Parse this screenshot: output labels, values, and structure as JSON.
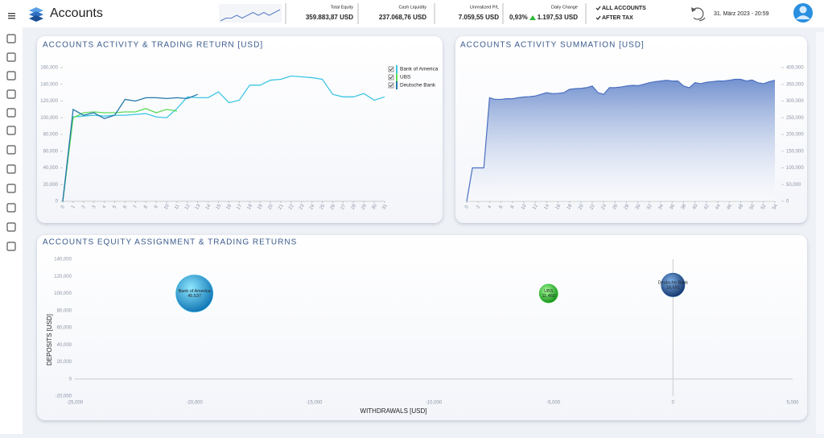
{
  "header": {
    "title": "Accounts",
    "sparkline": [
      3,
      4,
      4,
      5,
      4,
      5,
      6,
      5,
      6,
      5,
      6,
      7
    ],
    "kpis": [
      {
        "label": "Total Equity",
        "value": "359.883,87 USD"
      },
      {
        "label": "Cash Liquidity",
        "value": "237.068,76 USD"
      },
      {
        "label": "Unrealized P/L",
        "value": "7.059,55 USD"
      }
    ],
    "daily_change": {
      "label": "Daily Change",
      "percent": "0,93%",
      "value": "1.197,53 USD"
    },
    "options": [
      "ALL ACCOUNTS",
      "AFTER TAX"
    ],
    "datetime": "31. März 2023  -  20:59"
  },
  "chart_data": [
    {
      "type": "line",
      "title": "ACCOUNTS ACTIVITY & TRADING RETURN [USD]",
      "legend": "top-right",
      "x": [
        0,
        1,
        2,
        3,
        4,
        5,
        6,
        7,
        8,
        9,
        10,
        11,
        12,
        13,
        14,
        15,
        16,
        17,
        18,
        19,
        20,
        21,
        22,
        23,
        24,
        25,
        26,
        27,
        28,
        29,
        30,
        31
      ],
      "xlim": [
        0,
        31
      ],
      "ylim": [
        0,
        160000
      ],
      "yticks": [
        0,
        {
          "value": 20000,
          "label": "20,000"
        },
        {
          "value": 40000,
          "label": "40,000"
        },
        {
          "value": 60000,
          "label": "60,000"
        },
        {
          "value": 80000,
          "label": "80,000"
        },
        {
          "value": 100000,
          "label": "100,000"
        },
        {
          "value": 120000,
          "label": "120,000"
        },
        {
          "value": 140000,
          "label": "140,000"
        },
        {
          "value": 160000,
          "label": "160,000"
        }
      ],
      "series": [
        {
          "name": "Bank of America",
          "color": "#3cc6e4",
          "values": [
            0,
            101000,
            102000,
            103000,
            102000,
            103000,
            103000,
            104000,
            105000,
            101000,
            100000,
            111000,
            125000,
            124000,
            124000,
            131000,
            118000,
            121000,
            139000,
            139000,
            145000,
            146000,
            150000,
            149000,
            148000,
            146000,
            128000,
            125000,
            125000,
            129000,
            121000,
            125000
          ]
        },
        {
          "name": "UBS",
          "color": "#5ddc5a",
          "values": [
            0,
            100000,
            106000,
            107000,
            106000,
            106000,
            107000,
            107000,
            111000,
            106000,
            110000,
            108000,
            null,
            null,
            null,
            null,
            null,
            null,
            null,
            null,
            null,
            null,
            null,
            null,
            null,
            null,
            null,
            null,
            null,
            null,
            null,
            null
          ]
        },
        {
          "name": "Deutsche Bank",
          "color": "#2477a8",
          "values": [
            0,
            110000,
            103000,
            106000,
            99000,
            103000,
            122000,
            120000,
            124000,
            124000,
            123000,
            124000,
            123000,
            128000,
            null,
            null,
            null,
            null,
            null,
            null,
            null,
            null,
            null,
            null,
            null,
            null,
            null,
            null,
            null,
            null,
            null,
            null
          ]
        }
      ]
    },
    {
      "type": "area",
      "title": "ACCOUNTS ACTIVITY SUMMATION [USD]",
      "color": "#4a6fc0",
      "x": [
        0,
        1,
        2,
        3,
        4,
        5,
        6,
        7,
        8,
        9,
        10,
        11,
        12,
        13,
        14,
        15,
        16,
        17,
        18,
        19,
        20,
        21,
        22,
        23,
        24,
        25,
        26,
        27,
        28,
        29,
        30,
        31,
        32,
        33,
        34,
        35,
        36,
        37,
        38,
        39,
        40,
        41,
        42,
        43,
        44,
        45,
        46,
        47,
        48,
        49,
        50,
        51,
        52,
        53,
        54
      ],
      "values": [
        0,
        100000,
        100000,
        100000,
        310000,
        305000,
        305000,
        307000,
        307000,
        310000,
        312000,
        313000,
        315000,
        320000,
        325000,
        322000,
        323000,
        325000,
        335000,
        337000,
        338000,
        340000,
        345000,
        325000,
        320000,
        340000,
        340000,
        342000,
        345000,
        347000,
        346000,
        350000,
        355000,
        358000,
        360000,
        362000,
        360000,
        360000,
        345000,
        340000,
        355000,
        352000,
        356000,
        358000,
        360000,
        360000,
        362000,
        365000,
        365000,
        360000,
        363000,
        355000,
        352000,
        358000,
        362000
      ],
      "xlim": [
        0,
        54
      ],
      "xticks": [
        0,
        2,
        4,
        6,
        8,
        10,
        12,
        14,
        16,
        18,
        20,
        22,
        24,
        26,
        28,
        30,
        32,
        34,
        36,
        38,
        40,
        42,
        44,
        46,
        48,
        50,
        52,
        54
      ],
      "ylim": [
        0,
        400000
      ],
      "yticks": [
        0,
        {
          "value": 50000,
          "label": "50,000"
        },
        {
          "value": 100000,
          "label": "100,000"
        },
        {
          "value": 150000,
          "label": "150,000"
        },
        {
          "value": 200000,
          "label": "200,000"
        },
        {
          "value": 250000,
          "label": "250,000"
        },
        {
          "value": 300000,
          "label": "300,000"
        },
        {
          "value": 350000,
          "label": "350,000"
        },
        {
          "value": 400000,
          "label": "400,000"
        }
      ]
    },
    {
      "type": "bubble",
      "title": "ACCOUNTS EQUITY ASSIGNMENT & TRADING RETURNS",
      "x_label": "WITHDRAWALS  [USD]",
      "y_label": "DEPOSITS  [USD]",
      "xlim": [
        -25000,
        5000
      ],
      "xticks": [
        {
          "value": -25000,
          "label": "-25,000"
        },
        {
          "value": -20000,
          "label": "-20,000"
        },
        {
          "value": -15000,
          "label": "-15,000"
        },
        {
          "value": -10000,
          "label": "-10,000"
        },
        {
          "value": -5000,
          "label": "-5,000"
        },
        0,
        {
          "value": 5000,
          "label": "5,000"
        }
      ],
      "ylim": [
        -20000,
        140000
      ],
      "yticks": [
        {
          "value": -20000,
          "label": "-20,000"
        },
        0,
        {
          "value": 20000,
          "label": "20,000"
        },
        {
          "value": 40000,
          "label": "40,000"
        },
        {
          "value": 60000,
          "label": "60,000"
        },
        {
          "value": 80000,
          "label": "80,000"
        },
        {
          "value": 100000,
          "label": "100,000"
        },
        {
          "value": 120000,
          "label": "120,000"
        },
        {
          "value": 140000,
          "label": "140,000"
        }
      ],
      "series": [
        {
          "name": "Bank of America",
          "color": "#1aa7e0",
          "x": [
            -20000
          ],
          "values": [
            100000
          ],
          "sizes": [
            45537
          ],
          "value_labels": [
            "45,537"
          ]
        },
        {
          "name": "UBS",
          "color": "#22c025",
          "x": [
            -5200
          ],
          "values": [
            100000
          ],
          "sizes": [
            11460
          ],
          "value_labels": [
            "11,460"
          ]
        },
        {
          "name": "Deutsche Bank",
          "color": "#1f5d9c",
          "x": [
            0
          ],
          "values": [
            110000
          ],
          "sizes": [
            18591
          ],
          "value_labels": [
            "18,591"
          ]
        }
      ]
    }
  ]
}
